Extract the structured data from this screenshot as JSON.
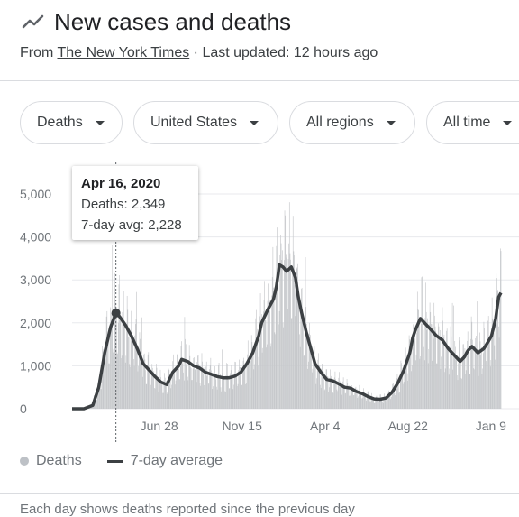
{
  "header": {
    "title": "New cases and deaths",
    "source_prefix": "From ",
    "source_link": "The New York Times",
    "source_suffix": " · Last updated: 12 hours ago",
    "icon": "trending-line-icon"
  },
  "filters": [
    {
      "label": "Deaths"
    },
    {
      "label": "United States"
    },
    {
      "label": "All regions"
    },
    {
      "label": "All time"
    }
  ],
  "tooltip": {
    "date": "Apr 16, 2020",
    "deaths": "Deaths: 2,349",
    "avg": "7-day avg: 2,228"
  },
  "legend": {
    "bars": "Deaths",
    "line": "7-day average"
  },
  "footer": "Each day shows deaths reported since the previous day",
  "chart_data": {
    "type": "bar",
    "ylim": [
      0,
      5000
    ],
    "yticks": [
      {
        "v": 0,
        "label": "0"
      },
      {
        "v": 1000,
        "label": "1,000"
      },
      {
        "v": 2000,
        "label": "2,000"
      },
      {
        "v": 3000,
        "label": "3,000"
      },
      {
        "v": 4000,
        "label": "4,000"
      },
      {
        "v": 5000,
        "label": "5,000"
      }
    ],
    "xticks": [
      {
        "d": 147,
        "label": "Jun 28"
      },
      {
        "d": 287,
        "label": "Nov 15"
      },
      {
        "d": 427,
        "label": "Apr 4"
      },
      {
        "d": 567,
        "label": "Aug 22"
      },
      {
        "d": 707,
        "label": "Jan 9"
      }
    ],
    "x_domain": [
      0,
      724
    ],
    "highlight": {
      "d": 74,
      "value": 2228
    },
    "seven_day_avg": [
      [
        0,
        0
      ],
      [
        20,
        0
      ],
      [
        35,
        80
      ],
      [
        45,
        500
      ],
      [
        55,
        1300
      ],
      [
        65,
        1900
      ],
      [
        74,
        2228
      ],
      [
        80,
        2150
      ],
      [
        90,
        1950
      ],
      [
        100,
        1700
      ],
      [
        110,
        1400
      ],
      [
        120,
        1050
      ],
      [
        130,
        900
      ],
      [
        140,
        750
      ],
      [
        150,
        620
      ],
      [
        160,
        560
      ],
      [
        170,
        850
      ],
      [
        180,
        1000
      ],
      [
        185,
        1150
      ],
      [
        195,
        1100
      ],
      [
        205,
        1000
      ],
      [
        215,
        950
      ],
      [
        225,
        850
      ],
      [
        235,
        800
      ],
      [
        245,
        750
      ],
      [
        255,
        720
      ],
      [
        265,
        720
      ],
      [
        275,
        760
      ],
      [
        285,
        850
      ],
      [
        295,
        1050
      ],
      [
        305,
        1300
      ],
      [
        315,
        1700
      ],
      [
        320,
        2000
      ],
      [
        330,
        2300
      ],
      [
        340,
        2550
      ],
      [
        345,
        2850
      ],
      [
        350,
        3350
      ],
      [
        356,
        3300
      ],
      [
        362,
        3200
      ],
      [
        370,
        3300
      ],
      [
        377,
        3050
      ],
      [
        382,
        2600
      ],
      [
        388,
        2200
      ],
      [
        395,
        1800
      ],
      [
        405,
        1300
      ],
      [
        410,
        1050
      ],
      [
        420,
        850
      ],
      [
        430,
        680
      ],
      [
        440,
        650
      ],
      [
        450,
        580
      ],
      [
        460,
        500
      ],
      [
        470,
        480
      ],
      [
        480,
        400
      ],
      [
        490,
        350
      ],
      [
        500,
        280
      ],
      [
        510,
        230
      ],
      [
        520,
        220
      ],
      [
        530,
        250
      ],
      [
        540,
        380
      ],
      [
        550,
        600
      ],
      [
        560,
        900
      ],
      [
        570,
        1300
      ],
      [
        575,
        1650
      ],
      [
        580,
        1850
      ],
      [
        588,
        2100
      ],
      [
        595,
        2000
      ],
      [
        605,
        1850
      ],
      [
        615,
        1700
      ],
      [
        625,
        1600
      ],
      [
        635,
        1400
      ],
      [
        645,
        1250
      ],
      [
        655,
        1100
      ],
      [
        662,
        1200
      ],
      [
        668,
        1350
      ],
      [
        675,
        1450
      ],
      [
        685,
        1300
      ],
      [
        695,
        1400
      ],
      [
        702,
        1550
      ],
      [
        708,
        1700
      ],
      [
        715,
        2100
      ],
      [
        720,
        2600
      ],
      [
        724,
        2700
      ]
    ]
  }
}
